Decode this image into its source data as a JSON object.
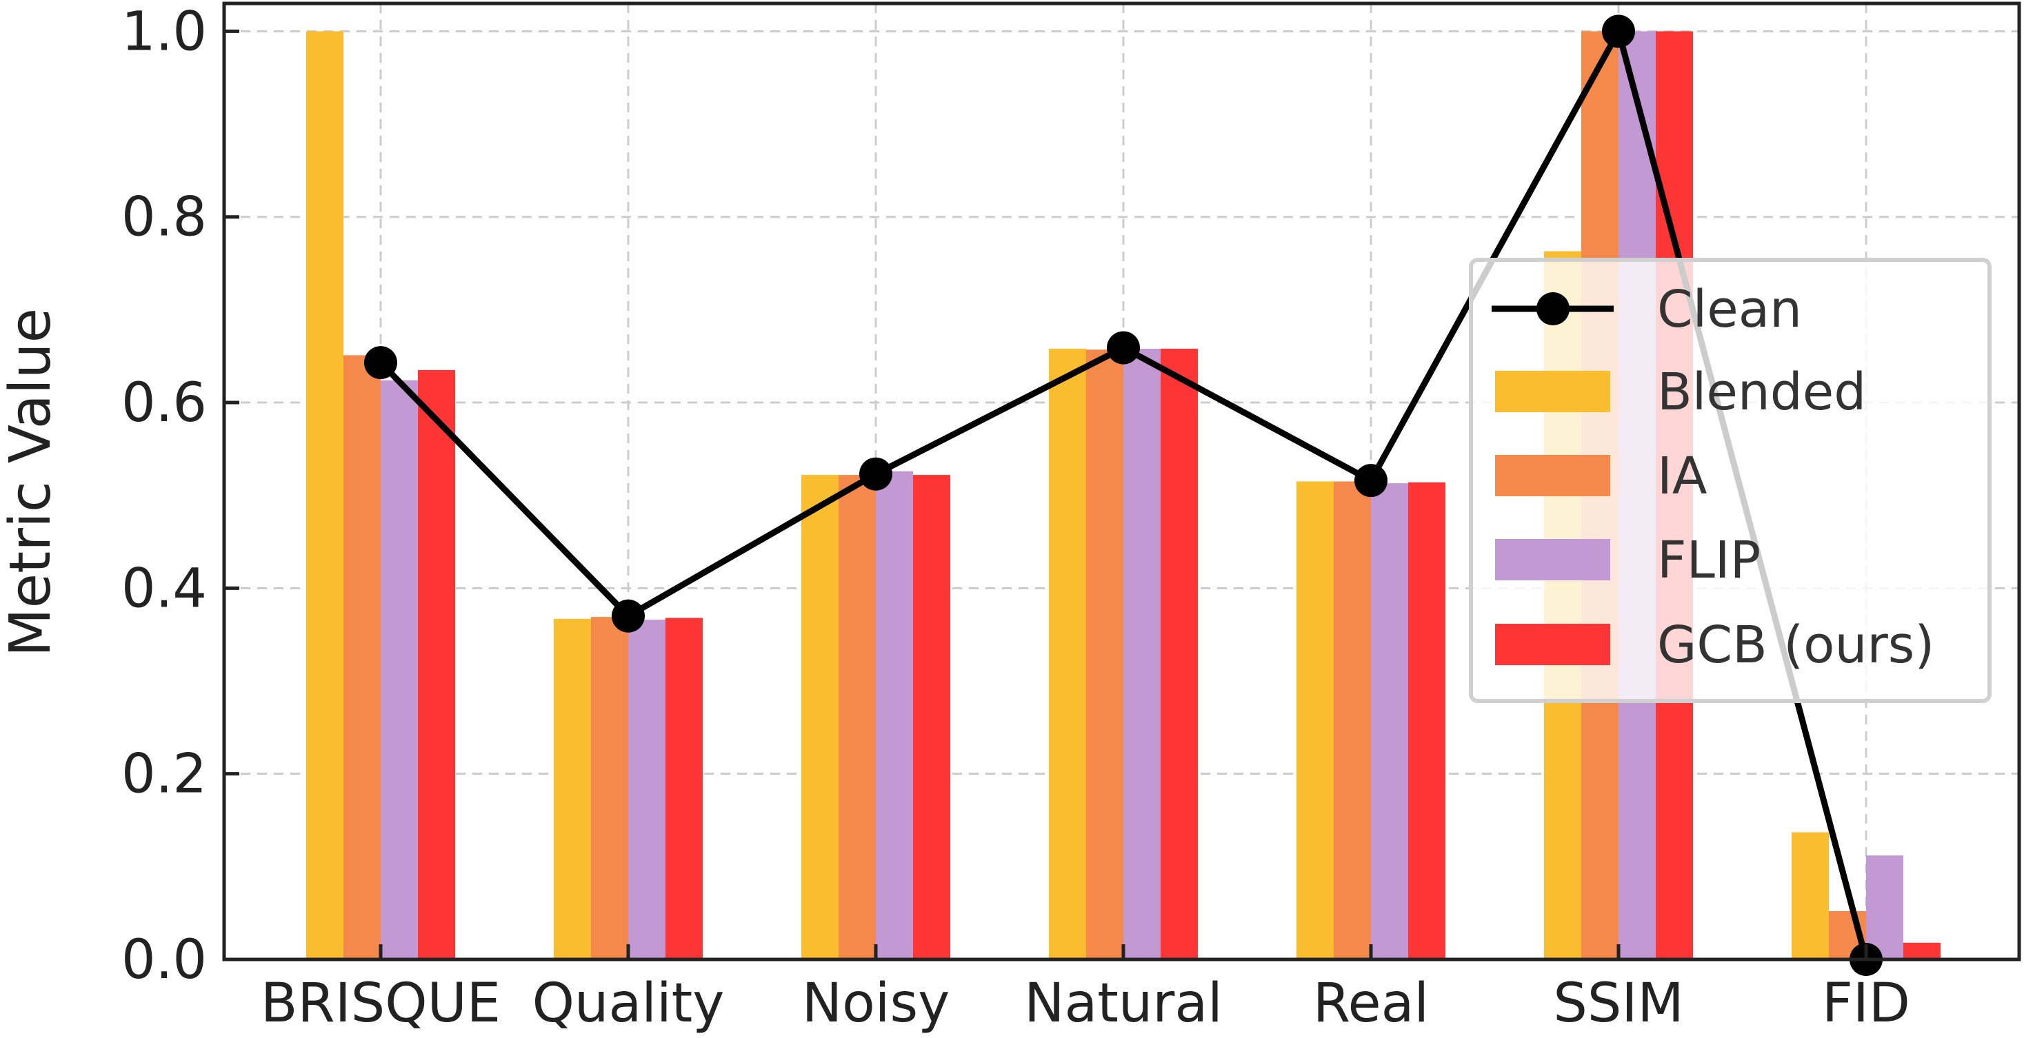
{
  "chart_data": {
    "type": "bar",
    "title": "",
    "xlabel": "",
    "ylabel": "Metric Value",
    "ylim": [
      0,
      1.03
    ],
    "yticks": [
      "0.0",
      "0.2",
      "0.4",
      "0.6",
      "0.8",
      "1.0"
    ],
    "categories": [
      "BRISQUE",
      "Quality",
      "Noisy",
      "Natural",
      "Real",
      "SSIM",
      "FID"
    ],
    "grid": true,
    "legend_position": "center-right",
    "series": [
      {
        "name": "Blended",
        "kind": "bar",
        "color": "#fbbd30",
        "values": [
          1.0,
          0.367,
          0.522,
          0.658,
          0.515,
          0.763,
          0.137
        ]
      },
      {
        "name": "IA",
        "kind": "bar",
        "color": "#f5884b",
        "values": [
          0.651,
          0.369,
          0.522,
          0.657,
          0.515,
          1.0,
          0.052
        ]
      },
      {
        "name": "FLIP",
        "kind": "bar",
        "color": "#c299d2",
        "values": [
          0.624,
          0.366,
          0.526,
          0.658,
          0.513,
          1.0,
          0.112
        ]
      },
      {
        "name": "GCB (ours)",
        "kind": "bar",
        "color": "#fe3535",
        "values": [
          0.635,
          0.368,
          0.522,
          0.658,
          0.514,
          1.0,
          0.018
        ]
      }
    ],
    "line_series": {
      "name": "Clean",
      "kind": "line",
      "color": "#000000",
      "values": [
        0.643,
        0.37,
        0.523,
        0.659,
        0.516,
        1.0,
        0.0
      ]
    }
  }
}
